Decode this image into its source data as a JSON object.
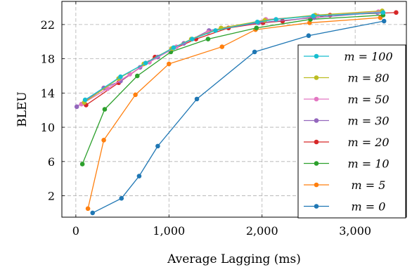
{
  "chart_data": {
    "type": "line",
    "title": "",
    "xlabel": "Average Lagging (ms)",
    "ylabel": "BLEU",
    "xlim": [
      -150,
      3550
    ],
    "ylim": [
      -0.5,
      24.7
    ],
    "xticks": [
      0,
      1000,
      2000,
      3000
    ],
    "xtick_labels": [
      "0",
      "1,000",
      "2,000",
      "3,000"
    ],
    "yticks": [
      2,
      6,
      10,
      14,
      18,
      22
    ],
    "ytick_labels": [
      "2",
      "6",
      "10",
      "14",
      "18",
      "22"
    ],
    "grid": true,
    "legend_position": "bottom-right",
    "series": [
      {
        "name": "m = 100",
        "color": "#17becf",
        "x": [
          100,
          480,
          750,
          1050,
          1250,
          1500,
          1950,
          2150,
          2550,
          3300
        ],
        "y": [
          13.2,
          15.9,
          17.5,
          19.3,
          20.3,
          21.3,
          22.3,
          22.6,
          23.0,
          23.4
        ]
      },
      {
        "name": "m = 80",
        "color": "#bcbd22",
        "x": [
          90,
          460,
          730,
          1030,
          1240,
          1560,
          2030,
          2570,
          3290
        ],
        "y": [
          12.9,
          15.7,
          17.4,
          19.2,
          20.3,
          21.6,
          22.5,
          23.1,
          23.6
        ]
      },
      {
        "name": "m = 50",
        "color": "#e377c2",
        "x": [
          60,
          340,
          580,
          790,
          1080,
          1420,
          2040,
          2600,
          3250
        ],
        "y": [
          12.7,
          14.5,
          16.2,
          17.6,
          19.4,
          21.1,
          22.6,
          23.0,
          23.5
        ]
      },
      {
        "name": "m = 30",
        "color": "#9467bd",
        "x": [
          10,
          300,
          480,
          690,
          880,
          1160,
          1430,
          1960,
          2560,
          3240
        ],
        "y": [
          12.4,
          14.6,
          15.4,
          17.0,
          18.2,
          19.8,
          21.3,
          22.2,
          22.8,
          23.4
        ]
      },
      {
        "name": "m = 20",
        "color": "#d62728",
        "x": [
          110,
          460,
          850,
          1290,
          1640,
          2010,
          2220,
          2730,
          3440
        ],
        "y": [
          12.6,
          15.2,
          18.2,
          20.3,
          21.6,
          22.2,
          22.4,
          23.1,
          23.4
        ]
      },
      {
        "name": "m = 10",
        "color": "#2ca02c",
        "x": [
          70,
          310,
          660,
          1020,
          1420,
          1940,
          2520,
          3300
        ],
        "y": [
          5.7,
          12.1,
          16.0,
          18.8,
          20.3,
          21.6,
          22.6,
          23.1
        ]
      },
      {
        "name": "m = 5",
        "color": "#ff7f0e",
        "x": [
          130,
          300,
          640,
          1000,
          1570,
          1930,
          2510,
          3270
        ],
        "y": [
          0.5,
          8.5,
          13.8,
          17.4,
          19.4,
          21.4,
          22.2,
          22.8
        ]
      },
      {
        "name": "m = 0",
        "color": "#1f77b4",
        "x": [
          180,
          490,
          680,
          880,
          1300,
          1920,
          2500,
          3310
        ],
        "y": [
          0.0,
          1.7,
          4.3,
          7.8,
          13.3,
          18.8,
          20.7,
          22.4
        ]
      }
    ]
  }
}
